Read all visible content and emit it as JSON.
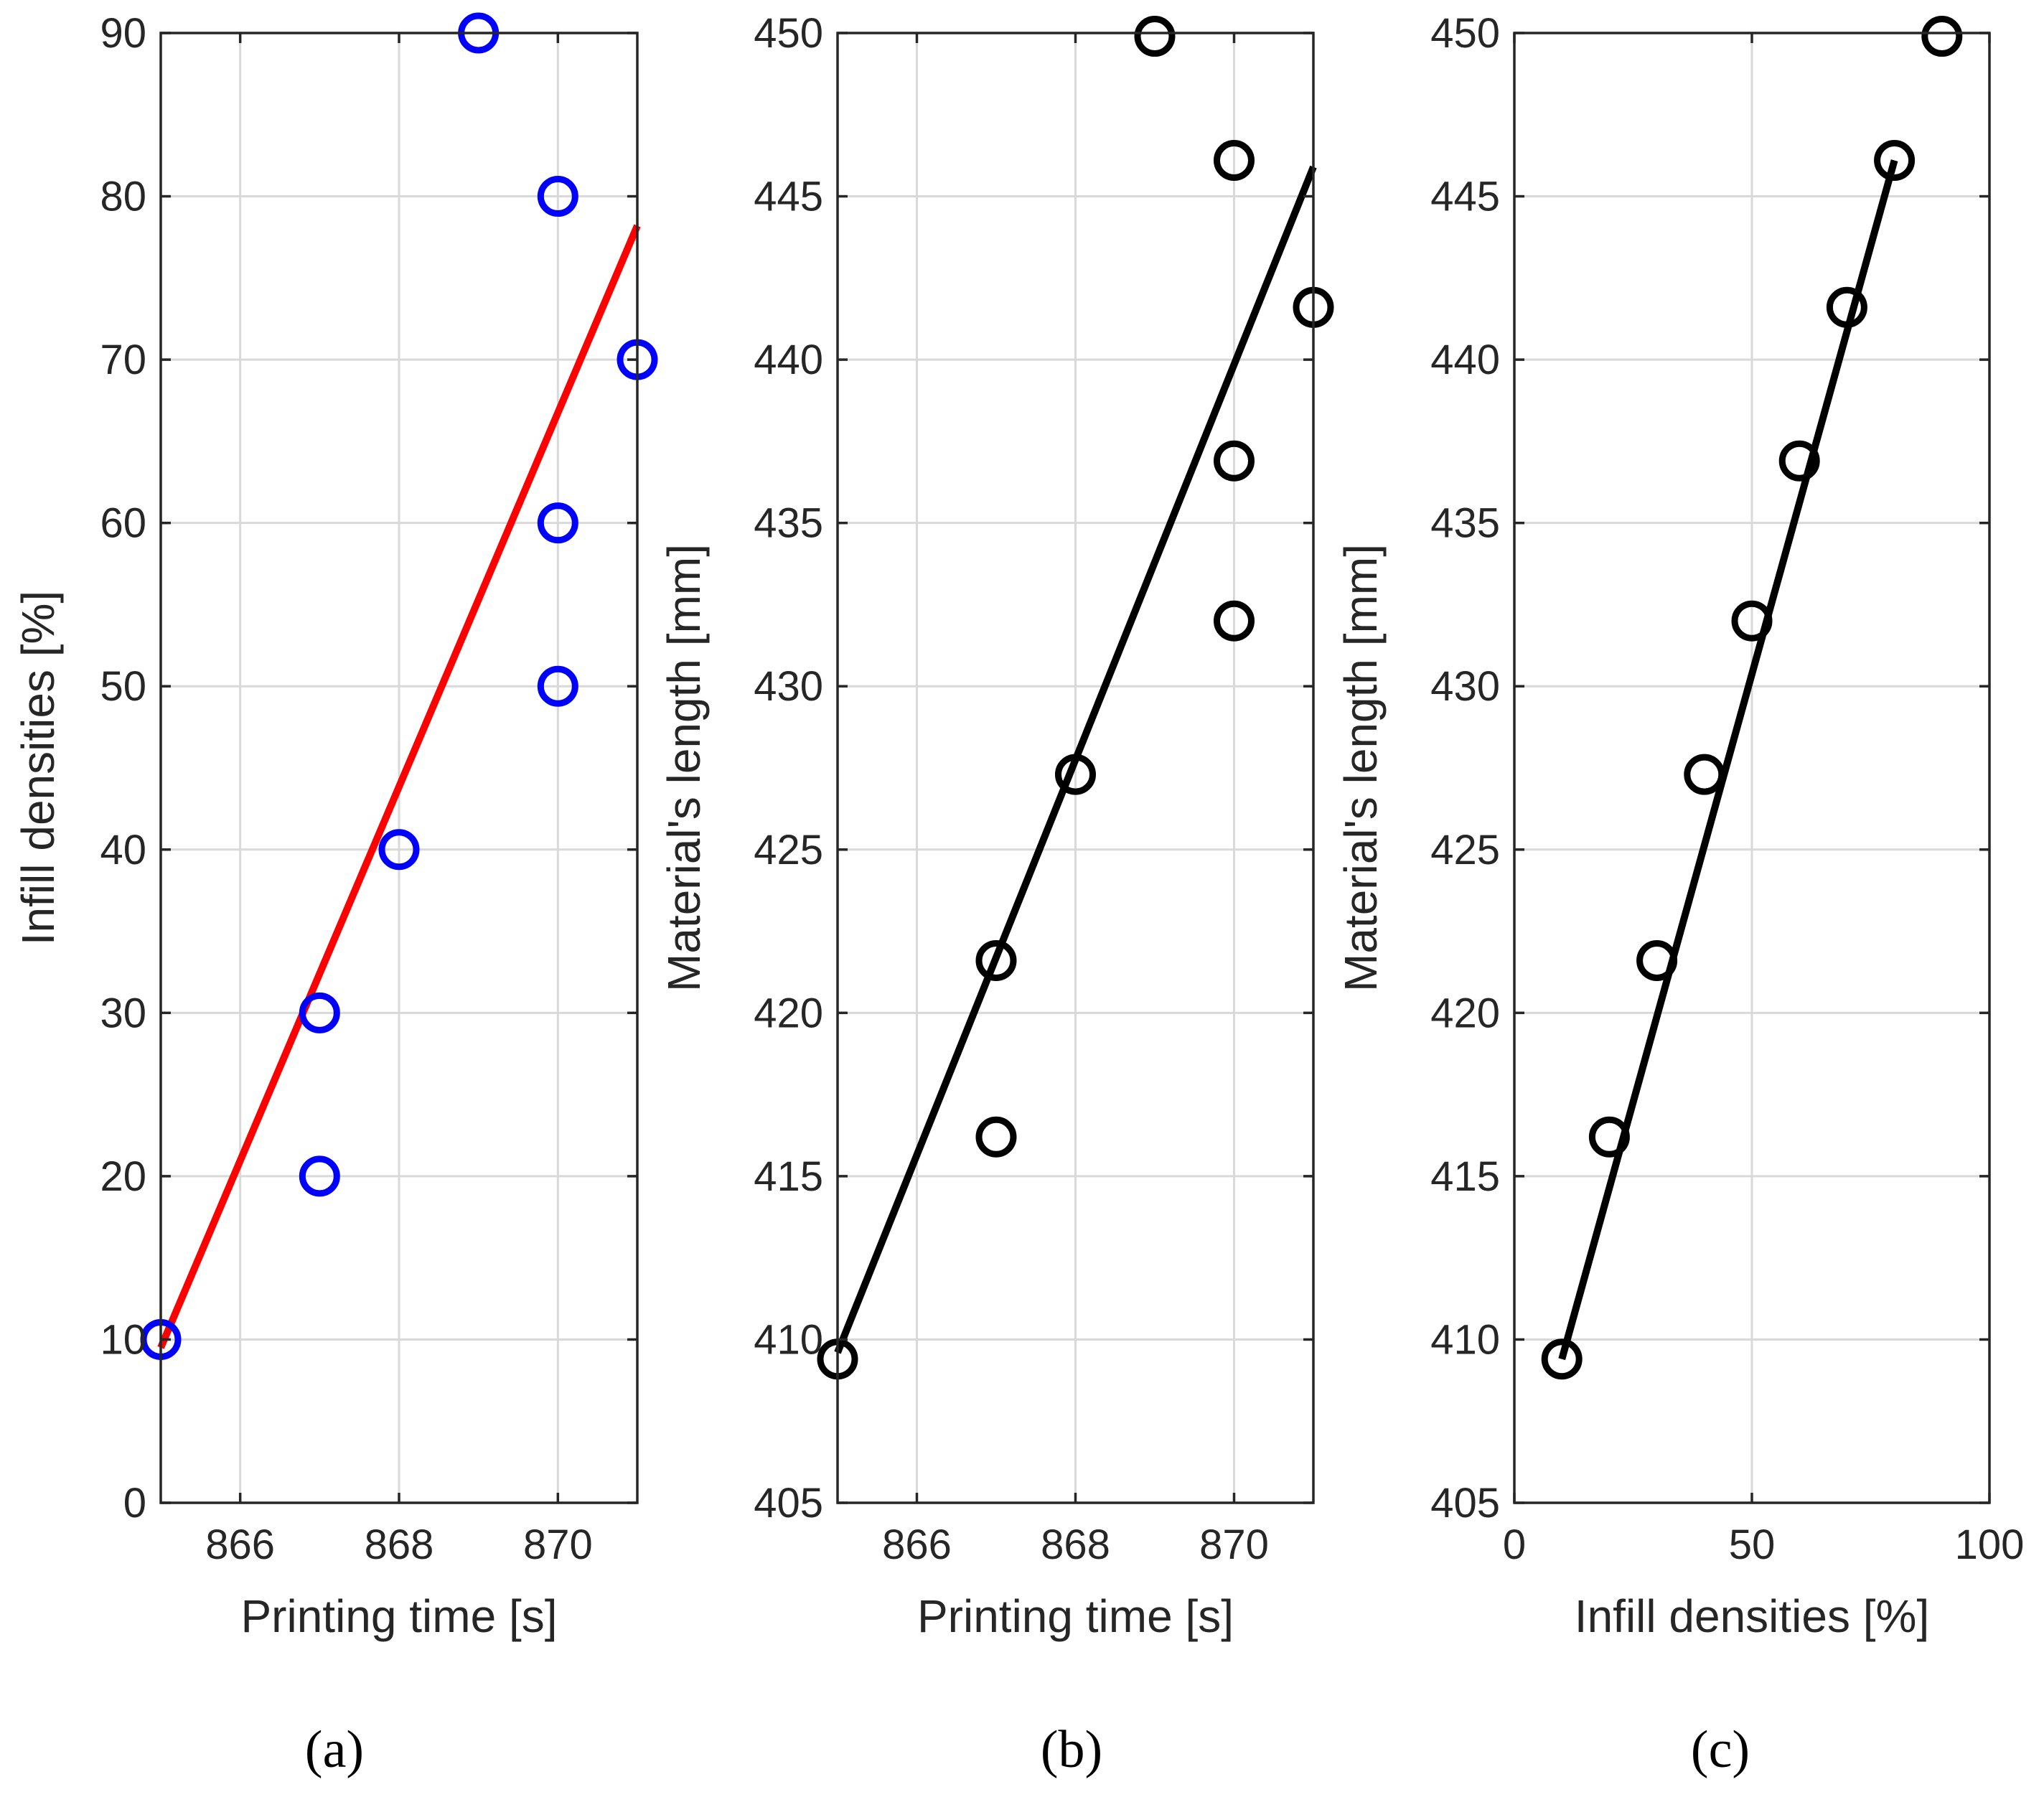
{
  "chart_data": [
    {
      "type": "scatter",
      "panel_label": "(a)",
      "xlabel": "Printing time [s]",
      "ylabel": "Infill densities [%]",
      "xlim": [
        865,
        871
      ],
      "ylim": [
        0,
        90
      ],
      "xticks": [
        866,
        868,
        870
      ],
      "yticks": [
        0,
        10,
        20,
        30,
        40,
        50,
        60,
        70,
        80,
        90
      ],
      "grid": true,
      "marker_color": "#0000ff",
      "line_color": "#ff0000",
      "points": [
        {
          "x": 865,
          "y": 10
        },
        {
          "x": 867,
          "y": 20
        },
        {
          "x": 867,
          "y": 30
        },
        {
          "x": 868,
          "y": 40
        },
        {
          "x": 870,
          "y": 50
        },
        {
          "x": 870,
          "y": 60
        },
        {
          "x": 871,
          "y": 70
        },
        {
          "x": 870,
          "y": 80
        },
        {
          "x": 869,
          "y": 90
        }
      ],
      "fit_line": {
        "x": [
          865,
          871
        ],
        "y": [
          9.5,
          78.2
        ]
      }
    },
    {
      "type": "scatter",
      "panel_label": "(b)",
      "xlabel": "Printing time [s]",
      "ylabel": "Material's length [mm]",
      "xlim": [
        865,
        871
      ],
      "ylim": [
        405,
        450
      ],
      "xticks": [
        866,
        868,
        870
      ],
      "yticks": [
        405,
        410,
        415,
        420,
        425,
        430,
        435,
        440,
        445,
        450
      ],
      "grid": true,
      "marker_color": "#000000",
      "line_color": "#000000",
      "points": [
        {
          "x": 865,
          "y": 409.4
        },
        {
          "x": 867,
          "y": 416.2
        },
        {
          "x": 867,
          "y": 421.6
        },
        {
          "x": 868,
          "y": 427.3
        },
        {
          "x": 870,
          "y": 432.0
        },
        {
          "x": 870,
          "y": 436.9
        },
        {
          "x": 871,
          "y": 441.6
        },
        {
          "x": 870,
          "y": 446.1
        },
        {
          "x": 869,
          "y": 449.9
        }
      ],
      "fit_line": {
        "x": [
          865,
          871
        ],
        "y": [
          409.6,
          445.9
        ]
      }
    },
    {
      "type": "scatter",
      "panel_label": "(c)",
      "xlabel": "Infill densities [%]",
      "ylabel": "Material's length [mm]",
      "xlim": [
        0,
        100
      ],
      "ylim": [
        405,
        450
      ],
      "xticks": [
        0,
        50,
        100
      ],
      "yticks": [
        405,
        410,
        415,
        420,
        425,
        430,
        435,
        440,
        445,
        450
      ],
      "grid": true,
      "marker_color": "#000000",
      "line_color": "#000000",
      "points": [
        {
          "x": 10,
          "y": 409.4
        },
        {
          "x": 20,
          "y": 416.2
        },
        {
          "x": 30,
          "y": 421.6
        },
        {
          "x": 40,
          "y": 427.3
        },
        {
          "x": 50,
          "y": 432.0
        },
        {
          "x": 60,
          "y": 436.9
        },
        {
          "x": 70,
          "y": 441.6
        },
        {
          "x": 80,
          "y": 446.1
        },
        {
          "x": 90,
          "y": 449.9
        }
      ],
      "fit_line": {
        "x": [
          10,
          80
        ],
        "y": [
          409.4,
          446.1
        ]
      }
    }
  ]
}
